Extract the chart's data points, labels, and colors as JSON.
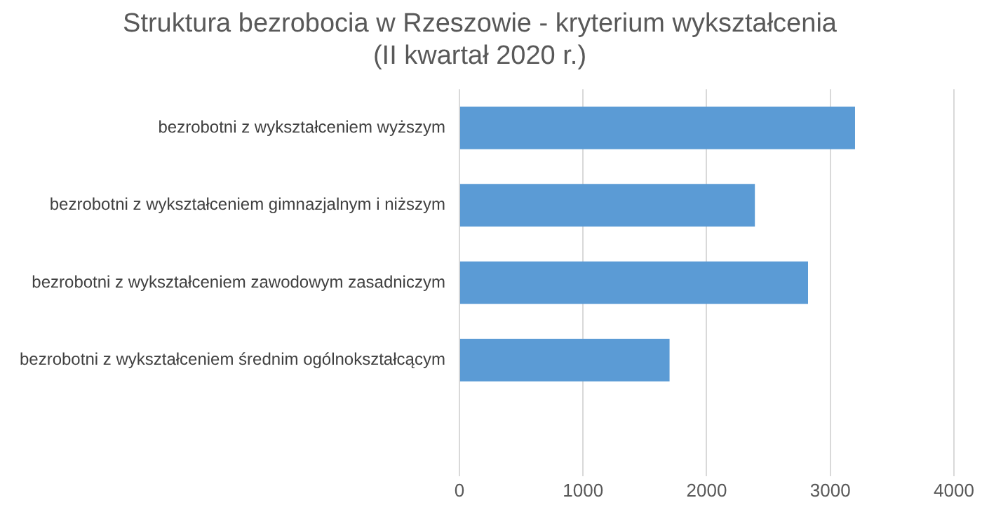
{
  "chart_data": {
    "type": "bar",
    "orientation": "horizontal",
    "title": "Struktura bezrobocia w Rzeszowie - kryterium wykształcenia\n(II kwartał 2020 r.)",
    "categories": [
      "bezrobotni z wykształceniem wyższym",
      "bezrobotni z wykształceniem gimnazjalnym i niższym",
      "bezrobotni z wykształceniem zawodowym zasadniczym",
      "bezrobotni z wykształceniem średnim ogólnokształcącym",
      null
    ],
    "values": [
      3200,
      2390,
      2820,
      1700,
      null
    ],
    "color": "#5b9bd5",
    "xlim": [
      0,
      4000
    ],
    "xticks": [
      0,
      1000,
      2000,
      3000,
      4000
    ],
    "grid": "x",
    "legend": false
  }
}
